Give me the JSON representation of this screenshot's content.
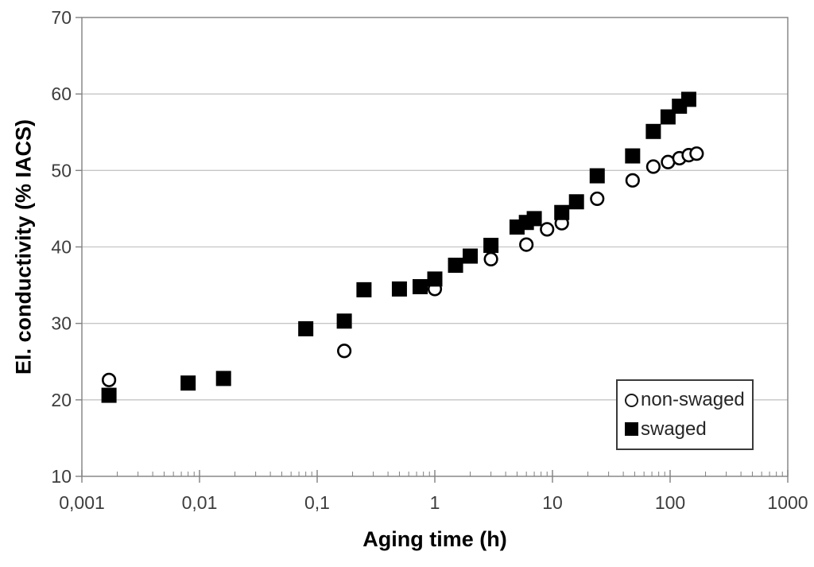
{
  "colors": {
    "marker": "#000000",
    "grid": "#c6c6c6",
    "axis": "#808080",
    "tick_text": "#3d3d3d"
  },
  "chart_data": {
    "type": "scatter",
    "title": "",
    "xlabel": "Aging time (h)",
    "ylabel": "El. conductivity (% IACS)",
    "x_scale": "log",
    "xlim": [
      0.001,
      1000
    ],
    "ylim": [
      10,
      70
    ],
    "x_tick_labels": [
      "0,001",
      "0,01",
      "0,1",
      "1",
      "10",
      "100",
      "1000"
    ],
    "y_ticks": [
      10,
      20,
      30,
      40,
      50,
      60,
      70
    ],
    "grid": "horizontal-only",
    "legend_position": "inside-bottom-right",
    "series": [
      {
        "name": "non-swaged",
        "marker": "open-circle",
        "points": [
          [
            0.0017,
            22.6
          ],
          [
            0.17,
            26.4
          ],
          [
            1,
            34.5
          ],
          [
            3,
            38.4
          ],
          [
            6,
            40.3
          ],
          [
            9,
            42.3
          ],
          [
            12,
            43.1
          ],
          [
            24,
            46.3
          ],
          [
            48,
            48.7
          ],
          [
            72,
            50.5
          ],
          [
            96,
            51.1
          ],
          [
            120,
            51.6
          ],
          [
            144,
            52.0
          ],
          [
            168,
            52.2
          ]
        ]
      },
      {
        "name": "swaged",
        "marker": "filled-square",
        "points": [
          [
            0.0017,
            20.6
          ],
          [
            0.008,
            22.2
          ],
          [
            0.016,
            22.8
          ],
          [
            0.08,
            29.3
          ],
          [
            0.17,
            30.3
          ],
          [
            0.25,
            34.4
          ],
          [
            0.5,
            34.5
          ],
          [
            0.75,
            34.8
          ],
          [
            1,
            35.8
          ],
          [
            1.5,
            37.6
          ],
          [
            2,
            38.8
          ],
          [
            3,
            40.2
          ],
          [
            5,
            42.6
          ],
          [
            6,
            43.2
          ],
          [
            7,
            43.7
          ],
          [
            12,
            44.5
          ],
          [
            16,
            45.9
          ],
          [
            24,
            49.3
          ],
          [
            48,
            51.9
          ],
          [
            72,
            55.1
          ],
          [
            96,
            57.0
          ],
          [
            120,
            58.4
          ],
          [
            144,
            59.3
          ]
        ]
      }
    ]
  }
}
